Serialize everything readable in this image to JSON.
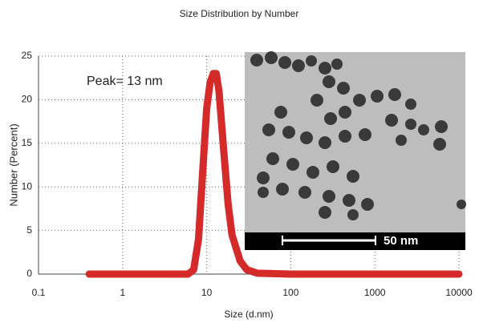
{
  "chart_data": {
    "type": "line",
    "title": "Size Distribution by Number",
    "x_label": "Size (d.nm)",
    "y_label": "Number (Percent)",
    "annotation": "Peak= 13 nm",
    "inset_scale_label": "50 nm",
    "x": [
      0.4,
      1,
      6,
      7,
      8,
      9,
      10,
      11,
      12,
      13,
      14,
      16,
      18,
      20,
      25,
      30,
      40,
      100,
      1000,
      10000
    ],
    "series": [
      {
        "color": "#d42a2a",
        "values": [
          0,
          0,
          0,
          0.5,
          4,
          12,
          19,
          22,
          23,
          23,
          21,
          14,
          8,
          4.5,
          1.5,
          0.5,
          0.1,
          0,
          0,
          0
        ]
      }
    ],
    "xlog": true,
    "xlim": [
      0.1,
      10000
    ],
    "xticks": [
      0.1,
      1,
      10,
      100,
      1000,
      10000
    ],
    "ylim": [
      0,
      25
    ],
    "yticks": [
      0,
      5,
      10,
      15,
      20,
      25
    ],
    "grid": true
  }
}
